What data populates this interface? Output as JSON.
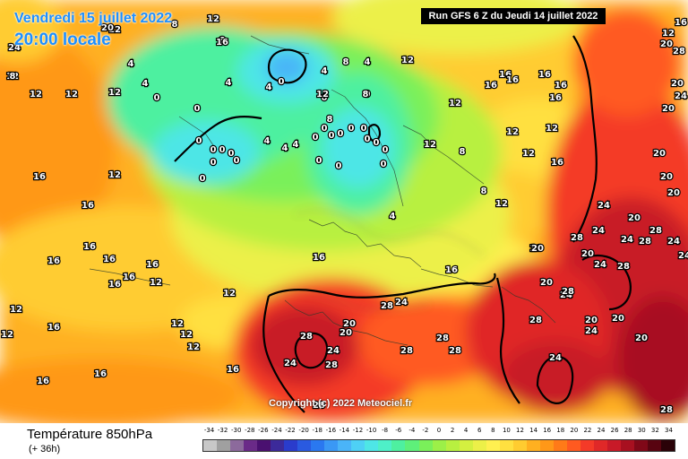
{
  "header": {
    "valid_date": "Vendredi 15 juillet 2022",
    "valid_time": "20:00 locale",
    "run_info": "Run GFS 6 Z du Jeudi 14 juillet 2022",
    "copyright": "Copyright (c) 2022 Meteociel.fr"
  },
  "footer": {
    "field_name": "Température 850hPa",
    "lead_time": "(+ 36h)"
  },
  "legend": {
    "ticks": [
      "-34",
      "-32",
      "-30",
      "-28",
      "-26",
      "-24",
      "-22",
      "-20",
      "-18",
      "-16",
      "-14",
      "-12",
      "-10",
      "-8",
      "-6",
      "-4",
      "-2",
      "0",
      "2",
      "4",
      "6",
      "8",
      "10",
      "12",
      "14",
      "16",
      "18",
      "20",
      "22",
      "24",
      "26",
      "28",
      "30",
      "32",
      "34"
    ],
    "colors": [
      "#c8c8c8",
      "#a0a0a0",
      "#8c6a9c",
      "#6a2a88",
      "#4a1070",
      "#3c2a9a",
      "#2a3ccc",
      "#2a5ae0",
      "#2a78f0",
      "#3a98f5",
      "#4ab4f8",
      "#4ed0f5",
      "#4ee6e6",
      "#4ef0c8",
      "#4ef0a0",
      "#5ef07a",
      "#7af05a",
      "#9cf048",
      "#b8f040",
      "#d4f040",
      "#ecf048",
      "#fff050",
      "#ffe040",
      "#ffcc30",
      "#ffb020",
      "#ff9818",
      "#ff7a18",
      "#ff5a20",
      "#f43a28",
      "#e02828",
      "#c81a28",
      "#a81020",
      "#800818",
      "#580410",
      "#2a0208"
    ],
    "accent": "#1e8fff"
  },
  "map": {
    "contour_color": "#000000",
    "labels": [
      {
        "t": "12",
        "c": "light"
      },
      {
        "t": "12",
        "c": "light"
      },
      {
        "t": "12",
        "c": "light"
      },
      {
        "t": "12",
        "c": "light"
      },
      {
        "t": "8",
        "c": "light"
      },
      {
        "t": "8",
        "c": "light"
      },
      {
        "t": "4",
        "c": "light"
      },
      {
        "t": "4",
        "c": "light"
      },
      {
        "t": "0",
        "c": "light"
      },
      {
        "t": "0",
        "c": "light"
      },
      {
        "t": "12",
        "c": "light"
      },
      {
        "t": "12",
        "c": "light"
      },
      {
        "t": "12",
        "c": "light"
      },
      {
        "t": "4",
        "c": "light"
      },
      {
        "t": "4",
        "c": "light"
      },
      {
        "t": "0",
        "c": "light"
      },
      {
        "t": "4",
        "c": "light"
      },
      {
        "t": "4",
        "c": "light"
      },
      {
        "t": "0",
        "c": "light"
      },
      {
        "t": "0",
        "c": "light"
      },
      {
        "t": "0",
        "c": "light"
      },
      {
        "t": "0",
        "c": "light"
      },
      {
        "t": "0",
        "c": "light"
      },
      {
        "t": "0",
        "c": "light"
      },
      {
        "t": "0",
        "c": "light"
      },
      {
        "t": "0",
        "c": "light"
      },
      {
        "t": "0",
        "c": "light"
      },
      {
        "t": "4",
        "c": "light"
      },
      {
        "t": "4",
        "c": "light"
      },
      {
        "t": "4",
        "c": "light"
      },
      {
        "t": "0",
        "c": "light"
      },
      {
        "t": "0",
        "c": "light"
      },
      {
        "t": "0",
        "c": "light"
      },
      {
        "t": "0",
        "c": "light"
      },
      {
        "t": "0",
        "c": "light"
      },
      {
        "t": "0",
        "c": "light"
      },
      {
        "t": "0",
        "c": "light"
      },
      {
        "t": "0",
        "c": "light"
      },
      {
        "t": "0",
        "c": "light"
      },
      {
        "t": "0",
        "c": "light"
      },
      {
        "t": "0",
        "c": "light"
      },
      {
        "t": "0",
        "c": "light"
      },
      {
        "t": "8",
        "c": "light"
      },
      {
        "t": "8",
        "c": "light"
      },
      {
        "t": "8",
        "c": "light"
      },
      {
        "t": "12",
        "c": "light"
      },
      {
        "t": "4",
        "c": "light"
      },
      {
        "t": "8",
        "c": "light"
      },
      {
        "t": "16",
        "c": "light"
      },
      {
        "t": "16",
        "c": "light"
      },
      {
        "t": "16",
        "c": "light"
      },
      {
        "t": "16",
        "c": "light"
      },
      {
        "t": "16",
        "c": "light"
      },
      {
        "t": "16",
        "c": "light"
      },
      {
        "t": "16",
        "c": "light"
      },
      {
        "t": "12",
        "c": "light"
      },
      {
        "t": "12",
        "c": "light"
      },
      {
        "t": "12",
        "c": "light"
      },
      {
        "t": "12",
        "c": "light"
      },
      {
        "t": "16",
        "c": "light"
      },
      {
        "t": "12",
        "c": "light"
      },
      {
        "t": "16",
        "c": "light"
      },
      {
        "t": "16",
        "c": "light"
      },
      {
        "t": "16",
        "c": "light"
      },
      {
        "t": "16",
        "c": "light"
      },
      {
        "t": "16",
        "c": "light"
      },
      {
        "t": "16",
        "c": "light"
      },
      {
        "t": "16",
        "c": "light"
      },
      {
        "t": "12",
        "c": "light"
      },
      {
        "t": "12",
        "c": "light"
      },
      {
        "t": "12",
        "c": "light"
      },
      {
        "t": "12",
        "c": "light"
      },
      {
        "t": "12",
        "c": "light"
      },
      {
        "t": "12",
        "c": "light"
      },
      {
        "t": "12",
        "c": "light"
      },
      {
        "t": "16",
        "c": "light"
      },
      {
        "t": "16",
        "c": "light"
      },
      {
        "t": "16",
        "c": "light"
      },
      {
        "t": "16",
        "c": "light"
      },
      {
        "t": "16",
        "c": "light"
      },
      {
        "t": "16",
        "c": "light"
      },
      {
        "t": "16",
        "c": "light"
      },
      {
        "t": "20",
        "c": "light"
      },
      {
        "t": "24",
        "c": "light"
      },
      {
        "t": "24",
        "c": "light"
      },
      {
        "t": "24",
        "c": "light"
      },
      {
        "t": "28",
        "c": "light"
      },
      {
        "t": "28",
        "c": "light"
      },
      {
        "t": "24",
        "c": "light"
      },
      {
        "t": "24",
        "c": "light"
      },
      {
        "t": "28",
        "c": "light"
      },
      {
        "t": "20",
        "c": "light"
      },
      {
        "t": "20",
        "c": "light"
      },
      {
        "t": "20",
        "c": "light"
      },
      {
        "t": "20",
        "c": "light"
      },
      {
        "t": "24",
        "c": "light"
      },
      {
        "t": "20",
        "c": "light"
      },
      {
        "t": "20",
        "c": "light"
      },
      {
        "t": "28",
        "c": "light"
      },
      {
        "t": "20",
        "c": "light"
      },
      {
        "t": "20",
        "c": "light"
      },
      {
        "t": "24",
        "c": "light"
      },
      {
        "t": "28",
        "c": "light"
      },
      {
        "t": "20",
        "c": "light"
      },
      {
        "t": "20",
        "c": "light"
      },
      {
        "t": "24",
        "c": "light"
      },
      {
        "t": "28",
        "c": "light"
      },
      {
        "t": "28",
        "c": "light"
      },
      {
        "t": "28",
        "c": "light"
      },
      {
        "t": "28",
        "c": "light"
      },
      {
        "t": "28",
        "c": "light"
      },
      {
        "t": "28",
        "c": "light"
      },
      {
        "t": "24",
        "c": "light"
      },
      {
        "t": "20",
        "c": "light"
      },
      {
        "t": "20",
        "c": "light"
      },
      {
        "t": "28",
        "c": "light"
      },
      {
        "t": "28",
        "c": "light"
      },
      {
        "t": "24",
        "c": "light"
      },
      {
        "t": "24",
        "c": "light"
      },
      {
        "t": "24",
        "c": "light"
      },
      {
        "t": "28",
        "c": "light"
      },
      {
        "t": "20",
        "c": "light"
      },
      {
        "t": "24",
        "c": "light"
      },
      {
        "t": "28",
        "c": "light"
      },
      {
        "t": "24",
        "c": "light"
      },
      {
        "t": "20",
        "c": "light"
      },
      {
        "t": "20",
        "c": "light"
      },
      {
        "t": "12",
        "c": "light"
      },
      {
        "t": "16",
        "c": "light"
      },
      {
        "t": "12",
        "c": "light"
      },
      {
        "t": "16",
        "c": "light"
      },
      {
        "t": "12",
        "c": "light"
      },
      {
        "t": "8",
        "c": "light"
      },
      {
        "t": "8",
        "c": "light"
      }
    ]
  }
}
